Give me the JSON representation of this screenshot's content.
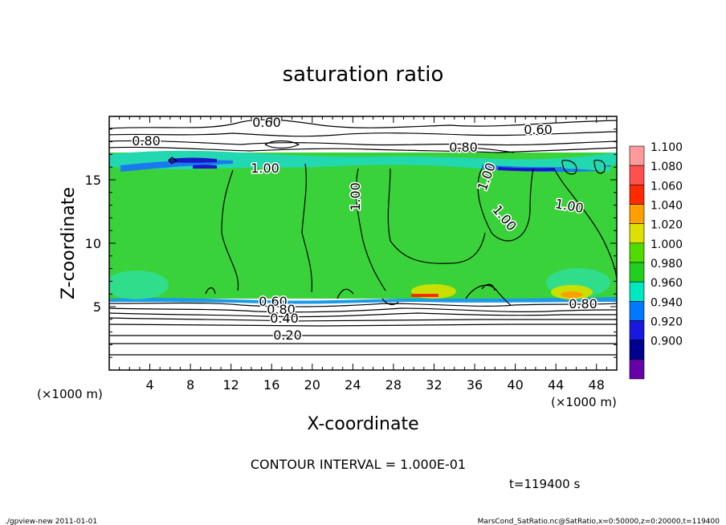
{
  "chart_data": {
    "type": "heatmap",
    "title": "saturation ratio",
    "xlabel": "X-coordinate",
    "ylabel": "Z-coordinate",
    "x_unit": "(×1000 m)",
    "y_unit": "(×1000 m)",
    "xlim": [
      0,
      50
    ],
    "ylim": [
      0,
      20
    ],
    "x_ticks": [
      "4",
      "8",
      "12",
      "16",
      "20",
      "24",
      "28",
      "32",
      "36",
      "40",
      "44",
      "48"
    ],
    "y_ticks": [
      "5",
      "10",
      "15"
    ],
    "contour_interval": "CONTOUR INTERVAL = 1.000E-01",
    "time_label": "t=119400 s",
    "contour_labels": [
      "0.60",
      "0.60",
      "0.80",
      "0.80",
      "1.00",
      "1.00",
      "1.00",
      "1.00",
      "1.00",
      "0.80",
      "0.60",
      "0.80",
      "0.40",
      "0.20"
    ],
    "colorbar": {
      "levels": [
        "1.100",
        "1.080",
        "1.060",
        "1.040",
        "1.020",
        "1.000",
        "0.980",
        "0.960",
        "0.940",
        "0.920",
        "0.900"
      ],
      "colors": [
        "#ff9a9a",
        "#ff5050",
        "#ff2a00",
        "#ffa000",
        "#dde000",
        "#50dc00",
        "#20d01c",
        "#00e8c0",
        "#0078ff",
        "#1818e0",
        "#000090",
        "#6800a8"
      ]
    }
  },
  "footer": {
    "left": "./gpview-new  2011-01-01",
    "right": "MarsCond_SatRatio.nc@SatRatio,x=0:50000,z=0:20000,t=119400"
  }
}
